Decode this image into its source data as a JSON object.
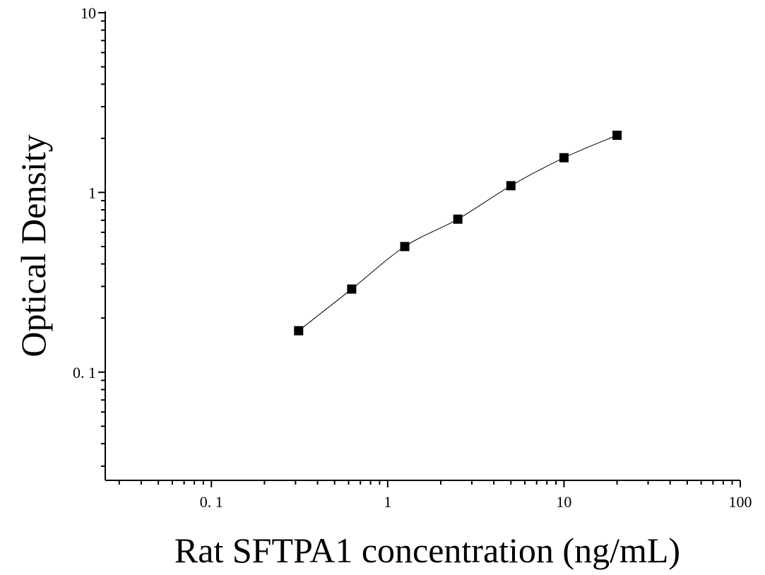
{
  "chart_data": {
    "type": "scatter",
    "title": "",
    "xlabel": "Rat SFTPA1 concentration (ng/mL)",
    "ylabel": "Optical Density",
    "x_scale": "log",
    "y_scale": "log",
    "xlim": [
      0.025,
      100
    ],
    "ylim": [
      0.025,
      10
    ],
    "x_ticks": [
      0.1,
      1,
      10,
      100
    ],
    "x_tick_labels": [
      "0. 1",
      "1",
      "10",
      "100"
    ],
    "y_ticks": [
      0.1,
      1,
      10
    ],
    "y_tick_labels": [
      "0. 1",
      "1",
      "10"
    ],
    "grid": false,
    "legend": "none",
    "marker": "square",
    "marker_color": "#000000",
    "line_color": "#000000",
    "series": [
      {
        "x": [
          0.3125,
          0.625,
          1.25,
          2.5,
          5,
          10,
          20
        ],
        "y": [
          0.17,
          0.29,
          0.5,
          0.71,
          1.09,
          1.56,
          2.08
        ]
      }
    ],
    "fit_curve": "smooth"
  }
}
